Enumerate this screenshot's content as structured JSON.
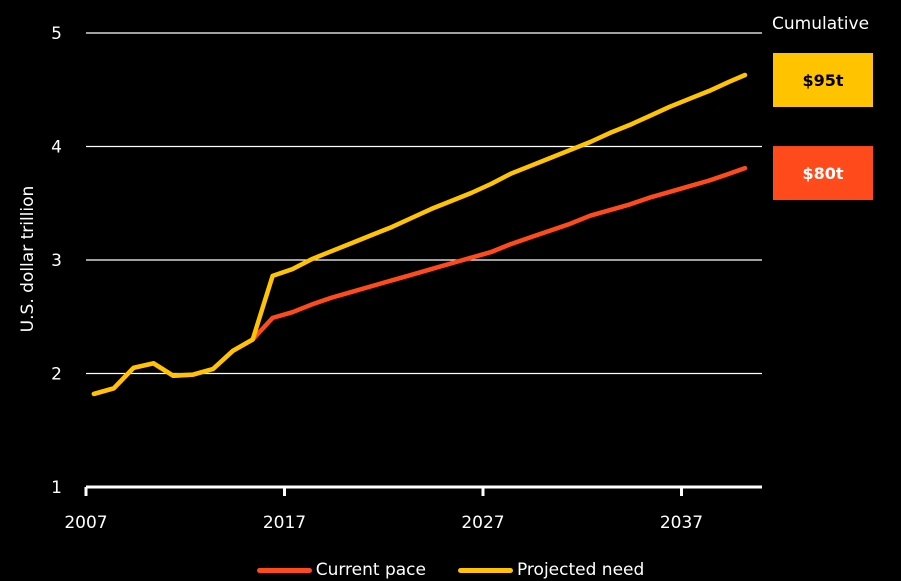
{
  "chart_data": {
    "type": "line",
    "title": "",
    "xlabel": "",
    "ylabel": "U.S. dollar trillion",
    "xlim": [
      2007,
      2040
    ],
    "ylim": [
      1,
      5
    ],
    "x_ticks": [
      2007,
      2017,
      2027,
      2037
    ],
    "y_ticks": [
      1,
      2,
      3,
      4,
      5
    ],
    "grid": "horizontal",
    "legend_position": "bottom",
    "series": [
      {
        "name": "Current pace",
        "color": "#ff4a1c",
        "points": [
          [
            2007.4,
            1.82
          ],
          [
            2008.4,
            1.87
          ],
          [
            2009.4,
            2.05
          ],
          [
            2010.4,
            2.09
          ],
          [
            2011.4,
            1.98
          ],
          [
            2012.4,
            1.99
          ],
          [
            2013.4,
            2.04
          ],
          [
            2014.4,
            2.2
          ],
          [
            2015.4,
            2.3
          ],
          [
            2016.4,
            2.49
          ],
          [
            2017.4,
            2.54
          ],
          [
            2018.4,
            2.61
          ],
          [
            2019.4,
            2.67
          ],
          [
            2020.4,
            2.72
          ],
          [
            2021.4,
            2.77
          ],
          [
            2022.4,
            2.82
          ],
          [
            2023.4,
            2.87
          ],
          [
            2024.4,
            2.92
          ],
          [
            2025.4,
            2.97
          ],
          [
            2026.4,
            3.02
          ],
          [
            2027.4,
            3.07
          ],
          [
            2028.4,
            3.14
          ],
          [
            2029.4,
            3.2
          ],
          [
            2030.4,
            3.26
          ],
          [
            2031.4,
            3.32
          ],
          [
            2032.4,
            3.39
          ],
          [
            2033.4,
            3.44
          ],
          [
            2034.4,
            3.49
          ],
          [
            2035.4,
            3.55
          ],
          [
            2036.4,
            3.6
          ],
          [
            2037.4,
            3.65
          ],
          [
            2038.4,
            3.7
          ],
          [
            2039.4,
            3.76
          ],
          [
            2040.2,
            3.81
          ]
        ]
      },
      {
        "name": "Projected need",
        "color": "#ffc300",
        "points": [
          [
            2007.4,
            1.82
          ],
          [
            2008.4,
            1.87
          ],
          [
            2009.4,
            2.05
          ],
          [
            2010.4,
            2.09
          ],
          [
            2011.4,
            1.98
          ],
          [
            2012.4,
            1.99
          ],
          [
            2013.4,
            2.04
          ],
          [
            2014.4,
            2.2
          ],
          [
            2015.4,
            2.3
          ],
          [
            2016.4,
            2.86
          ],
          [
            2017.4,
            2.92
          ],
          [
            2018.4,
            3.01
          ],
          [
            2019.4,
            3.08
          ],
          [
            2020.4,
            3.15
          ],
          [
            2021.4,
            3.22
          ],
          [
            2022.4,
            3.29
          ],
          [
            2023.4,
            3.37
          ],
          [
            2024.4,
            3.45
          ],
          [
            2025.4,
            3.52
          ],
          [
            2026.4,
            3.59
          ],
          [
            2027.4,
            3.67
          ],
          [
            2028.4,
            3.76
          ],
          [
            2029.4,
            3.83
          ],
          [
            2030.4,
            3.9
          ],
          [
            2031.4,
            3.97
          ],
          [
            2032.4,
            4.04
          ],
          [
            2033.4,
            4.12
          ],
          [
            2034.4,
            4.19
          ],
          [
            2035.4,
            4.27
          ],
          [
            2036.4,
            4.35
          ],
          [
            2037.4,
            4.42
          ],
          [
            2038.4,
            4.49
          ],
          [
            2039.4,
            4.57
          ],
          [
            2040.2,
            4.63
          ]
        ]
      }
    ],
    "annotations": {
      "cumulative_label": "Cumulative",
      "badges": [
        {
          "series": "Projected need",
          "label": "$95t",
          "color": "#ffc300",
          "text_color": "#000000"
        },
        {
          "series": "Current pace",
          "label": "$80t",
          "color": "#ff4a1c",
          "text_color": "#ffffff"
        }
      ]
    }
  },
  "legend": {
    "items": [
      {
        "label": "Current pace",
        "color": "#ff4a1c"
      },
      {
        "label": "Projected need",
        "color": "#ffc300"
      }
    ]
  }
}
